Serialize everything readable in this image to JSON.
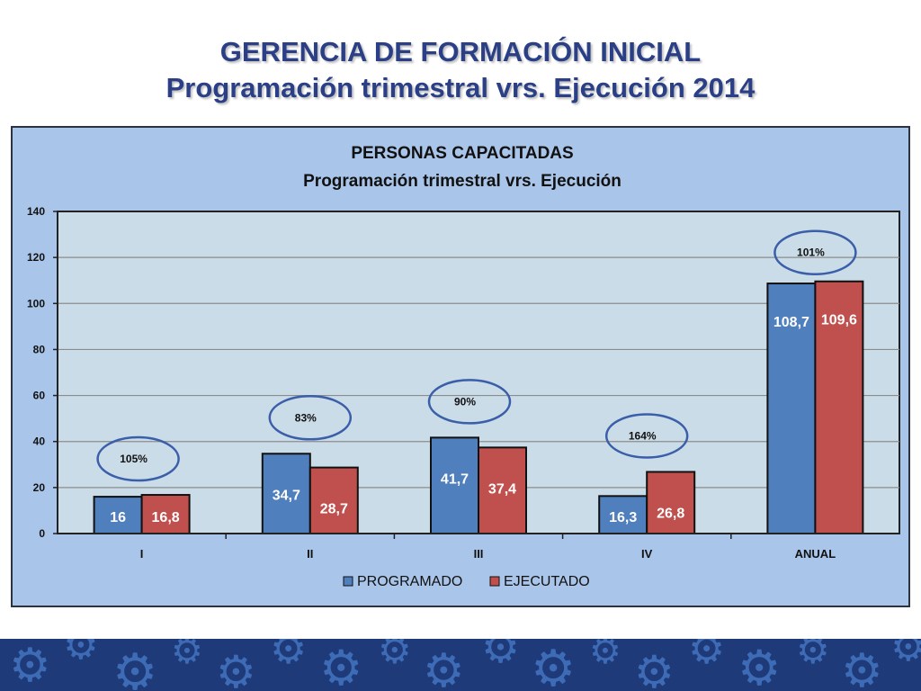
{
  "slide": {
    "title_line1": "GERENCIA DE FORMACIÓN INICIAL",
    "title_line2": "Programación trimestral vrs. Ejecución 2014"
  },
  "colors": {
    "title": "#2a3f86",
    "chart_bg": "#a9c5e9",
    "plot_bg": "#c9dce8",
    "programado": "#4f7fbd",
    "ejecutado": "#c0504d",
    "ellipse": "#3b5ea8",
    "band": "#1f3a78",
    "gear": "#3d6bb6"
  },
  "footer_band": {
    "icon": "gear-icon"
  },
  "chart_data": {
    "type": "bar",
    "title": "PERSONAS CAPACITADAS",
    "subtitle": "Programación trimestral vrs. Ejecución",
    "categories": [
      "I",
      "II",
      "III",
      "IV",
      "ANUAL"
    ],
    "series": [
      {
        "name": "PROGRAMADO",
        "values": [
          16,
          34.7,
          41.7,
          16.3,
          108.7
        ],
        "labels": [
          "16",
          "34,7",
          "41,7",
          "16,3",
          "108,7"
        ]
      },
      {
        "name": "EJECUTADO",
        "values": [
          16.8,
          28.7,
          37.4,
          26.8,
          109.6
        ],
        "labels": [
          "16,8",
          "28,7",
          "37,4",
          "26,8",
          "109,6"
        ]
      }
    ],
    "annotations": [
      "105%",
      "83%",
      "90%",
      "164%",
      "101%"
    ],
    "ylim": [
      0,
      140
    ],
    "yticks": [
      0,
      20,
      40,
      60,
      80,
      100,
      120,
      140
    ],
    "grid": true,
    "legend": "bottom"
  }
}
